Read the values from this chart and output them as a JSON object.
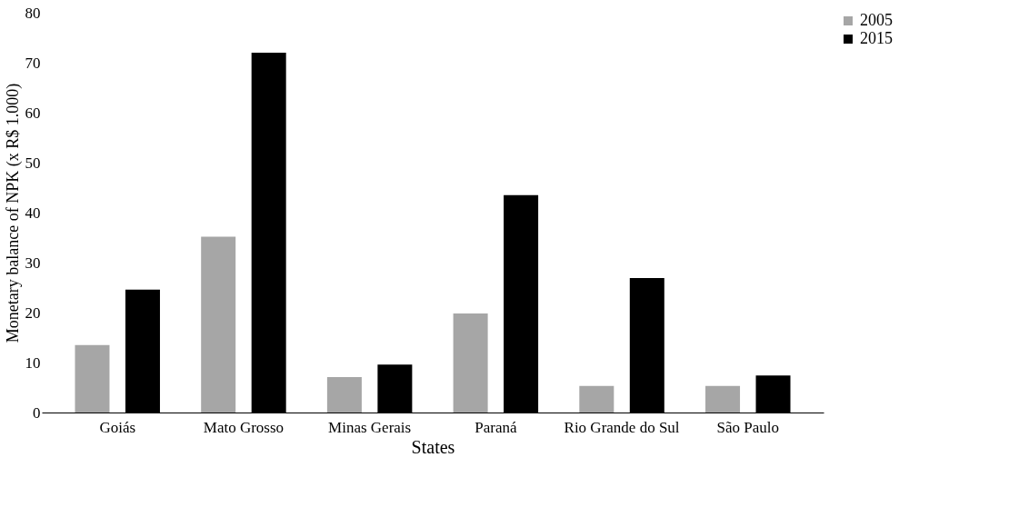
{
  "chart_data": {
    "type": "bar",
    "xlabel": "States",
    "ylabel": "Monetary balance of NPK (x R$ 1.000)",
    "categories": [
      "Goiás",
      "Mato Grosso",
      "Minas Gerais",
      "Paraná",
      "Rio Grande do Sul",
      "São Paulo"
    ],
    "series": [
      {
        "name": "2005",
        "color": "#a6a6a6",
        "values": [
          13.5,
          35.2,
          7.1,
          19.8,
          5.3,
          5.3
        ]
      },
      {
        "name": "2015",
        "color": "#000000",
        "values": [
          24.6,
          72.0,
          9.6,
          43.5,
          26.9,
          7.4
        ]
      }
    ],
    "ylim": [
      0,
      80
    ],
    "yticks": [
      0,
      10,
      20,
      30,
      40,
      50,
      60,
      70,
      80
    ],
    "grid": false,
    "legend": "right"
  }
}
